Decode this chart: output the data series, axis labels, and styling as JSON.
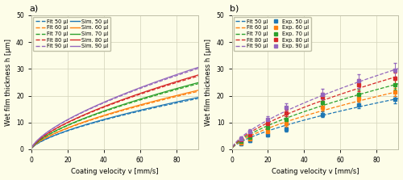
{
  "volumes": [
    50,
    60,
    70,
    80,
    90
  ],
  "colors": [
    "#1f77b4",
    "#ff7f0e",
    "#2ca02c",
    "#d62728",
    "#9467bd"
  ],
  "sim_coefficients": [
    0.95,
    1.08,
    1.22,
    1.36,
    1.5
  ],
  "fit_coefficients": [
    0.93,
    1.06,
    1.2,
    1.34,
    1.48
  ],
  "exp_velocities": [
    5,
    10,
    20,
    30,
    50,
    70,
    90
  ],
  "exp_data": {
    "50": [
      2.0,
      3.2,
      5.5,
      7.5,
      13.0,
      16.5,
      18.5
    ],
    "60": [
      2.5,
      3.8,
      6.5,
      9.5,
      15.5,
      19.0,
      21.5
    ],
    "70": [
      3.0,
      4.5,
      8.0,
      11.0,
      17.5,
      20.5,
      24.0
    ],
    "80": [
      3.5,
      5.5,
      9.5,
      13.5,
      19.5,
      24.0,
      26.5
    ],
    "90": [
      4.0,
      6.5,
      11.0,
      15.5,
      20.5,
      25.5,
      29.5
    ]
  },
  "exp_errors": {
    "50": [
      0.5,
      0.6,
      0.7,
      0.8,
      1.0,
      1.2,
      1.3
    ],
    "60": [
      0.5,
      0.6,
      0.9,
      1.0,
      1.2,
      1.4,
      1.5
    ],
    "70": [
      0.6,
      0.7,
      1.0,
      1.2,
      1.5,
      1.7,
      1.8
    ],
    "80": [
      0.6,
      0.9,
      1.1,
      1.3,
      1.6,
      2.2,
      2.0
    ],
    "90": [
      0.7,
      1.0,
      1.3,
      1.6,
      2.0,
      2.5,
      2.8
    ]
  },
  "ylim": [
    0,
    50
  ],
  "xlim": [
    0,
    92
  ],
  "ylabel": "Wet film thickness h [μm]",
  "xlabel": "Coating velocity v [mm/s]",
  "background_color": "#fdfde8",
  "grid_color": "#d8d8c0",
  "border_color": "#c0c0a8"
}
